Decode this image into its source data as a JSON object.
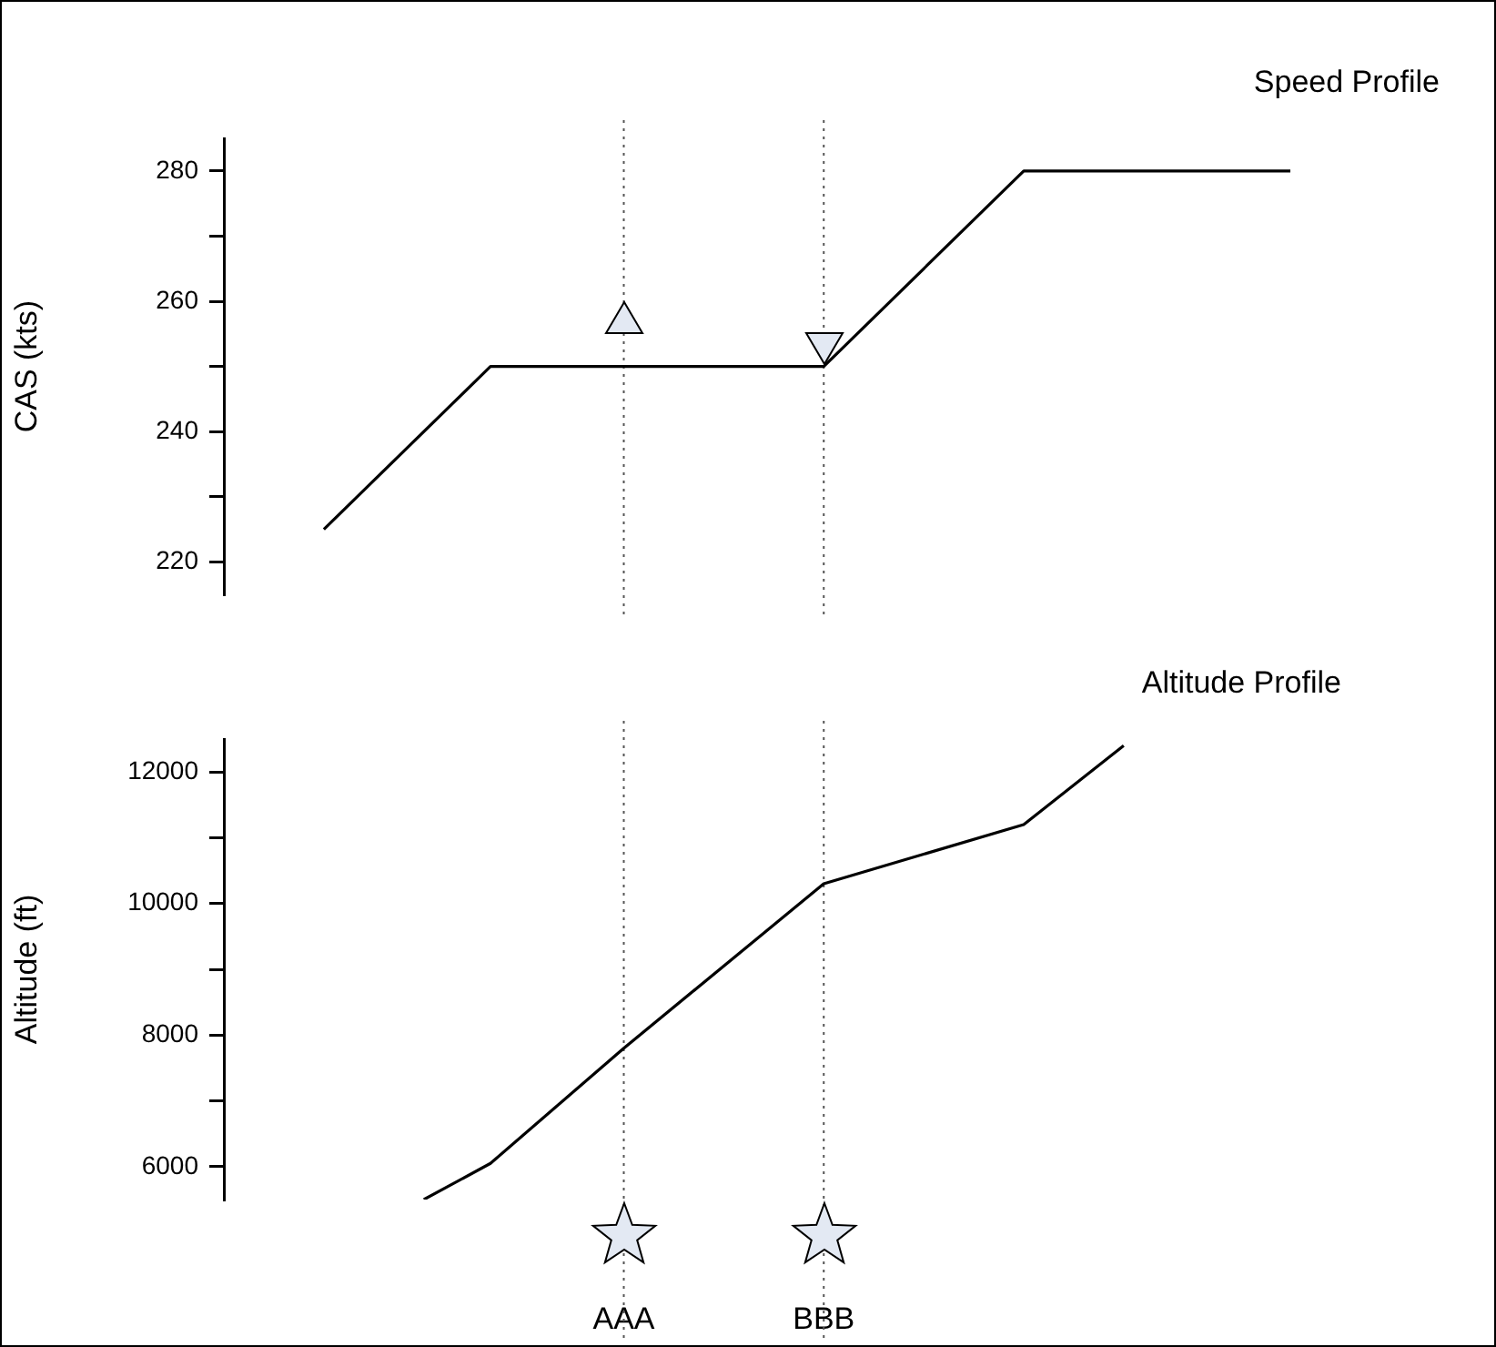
{
  "chart_data": [
    {
      "type": "line",
      "title": "Speed Profile",
      "ylabel": "CAS (kts)",
      "categories": [
        null,
        null,
        null,
        null,
        null,
        null,
        null,
        null,
        null,
        null,
        null,
        null,
        "AAA",
        null,
        null,
        null,
        null,
        null,
        "BBB",
        null,
        null,
        null,
        null,
        null,
        null,
        null,
        null,
        null,
        null,
        null,
        null,
        null,
        null
      ],
      "series": [
        {
          "color": "#000000",
          "values": [
            null,
            null,
            null,
            225,
            null,
            null,
            null,
            null,
            250,
            null,
            null,
            null,
            null,
            null,
            null,
            null,
            null,
            null,
            250,
            null,
            null,
            null,
            null,
            null,
            280,
            null,
            null,
            null,
            null,
            null,
            null,
            null,
            280
          ]
        }
      ],
      "ylim": [
        215,
        285
      ],
      "yticks": [
        220,
        {
          "value": 230,
          "label": null
        },
        240,
        {
          "value": 250,
          "label": null
        },
        260,
        {
          "value": 270,
          "label": null
        },
        280
      ],
      "ref_lines": [
        {
          "axis": "x",
          "value": "AAA",
          "line_style": "dotted",
          "color": "#555555"
        },
        {
          "axis": "x",
          "value": "BBB",
          "line_style": "dotted",
          "color": "#555555"
        }
      ],
      "tick_labels": "y",
      "grid": false,
      "legend": false,
      "marker": "none"
    },
    {
      "type": "line",
      "title": "Altitude Profile",
      "ylabel": "Altitude (ft)",
      "categories": [
        null,
        null,
        null,
        null,
        null,
        null,
        null,
        null,
        null,
        null,
        null,
        null,
        "AAA",
        null,
        null,
        null,
        null,
        null,
        "BBB",
        null,
        null,
        null,
        null,
        null,
        null,
        null,
        null,
        null,
        null,
        null,
        null,
        null,
        null
      ],
      "series": [
        {
          "color": "#000000",
          "values": [
            null,
            null,
            null,
            null,
            null,
            null,
            5500,
            null,
            6050,
            null,
            null,
            null,
            7800,
            null,
            null,
            null,
            null,
            null,
            10300,
            null,
            null,
            null,
            null,
            null,
            11200,
            null,
            null,
            12400,
            null,
            null,
            null,
            null,
            null
          ]
        }
      ],
      "ylim": [
        5500,
        12500
      ],
      "yticks": [
        6000,
        {
          "value": 7000,
          "label": null
        },
        8000,
        {
          "value": 9000,
          "label": null
        },
        10000,
        {
          "value": 11000,
          "label": null
        },
        12000
      ],
      "ref_lines": [
        {
          "axis": "x",
          "value": "AAA",
          "line_style": "dotted",
          "color": "#555555"
        },
        {
          "axis": "x",
          "value": "BBB",
          "line_style": "dotted",
          "color": "#555555"
        }
      ],
      "grid": false,
      "legend": false,
      "marker": "none"
    }
  ]
}
